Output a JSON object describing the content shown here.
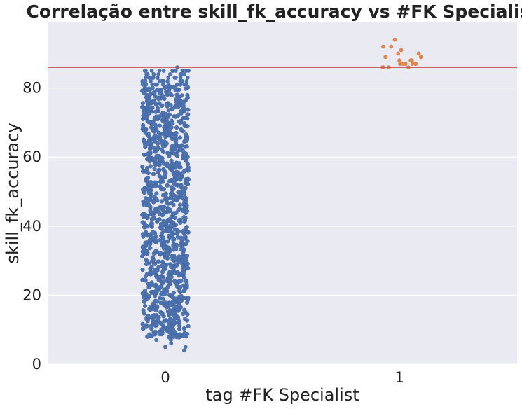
{
  "chart_data": {
    "type": "scatter",
    "subtype": "strip",
    "title": "Correlação entre skill_fk_accuracy vs #FK Specialist",
    "xlabel": "tag #FK Specialist",
    "ylabel": "skill_fk_accuracy",
    "categories": [
      "0",
      "1"
    ],
    "y_ticks": [
      "0",
      "20",
      "40",
      "60",
      "80"
    ],
    "ylim": [
      0,
      99
    ],
    "grid": true,
    "legend": "none",
    "reference_line": {
      "y": 86,
      "color": "#c44e52"
    },
    "background_color": "#eaeaf2",
    "series": [
      {
        "category": "0",
        "color": "#4c72b0",
        "range": [
          4,
          86
        ],
        "dense_range": [
          8,
          80
        ],
        "outliers": [
          4,
          5,
          5,
          6,
          7,
          7,
          8,
          8,
          8,
          81,
          82,
          83,
          84,
          85,
          85,
          85,
          86
        ]
      },
      {
        "category": "1",
        "color": "#dd8452",
        "values": [
          86,
          86,
          86,
          86,
          87,
          87,
          87,
          87,
          87,
          88,
          88,
          88,
          89,
          89,
          90,
          90,
          91,
          92,
          92,
          94
        ]
      }
    ]
  }
}
